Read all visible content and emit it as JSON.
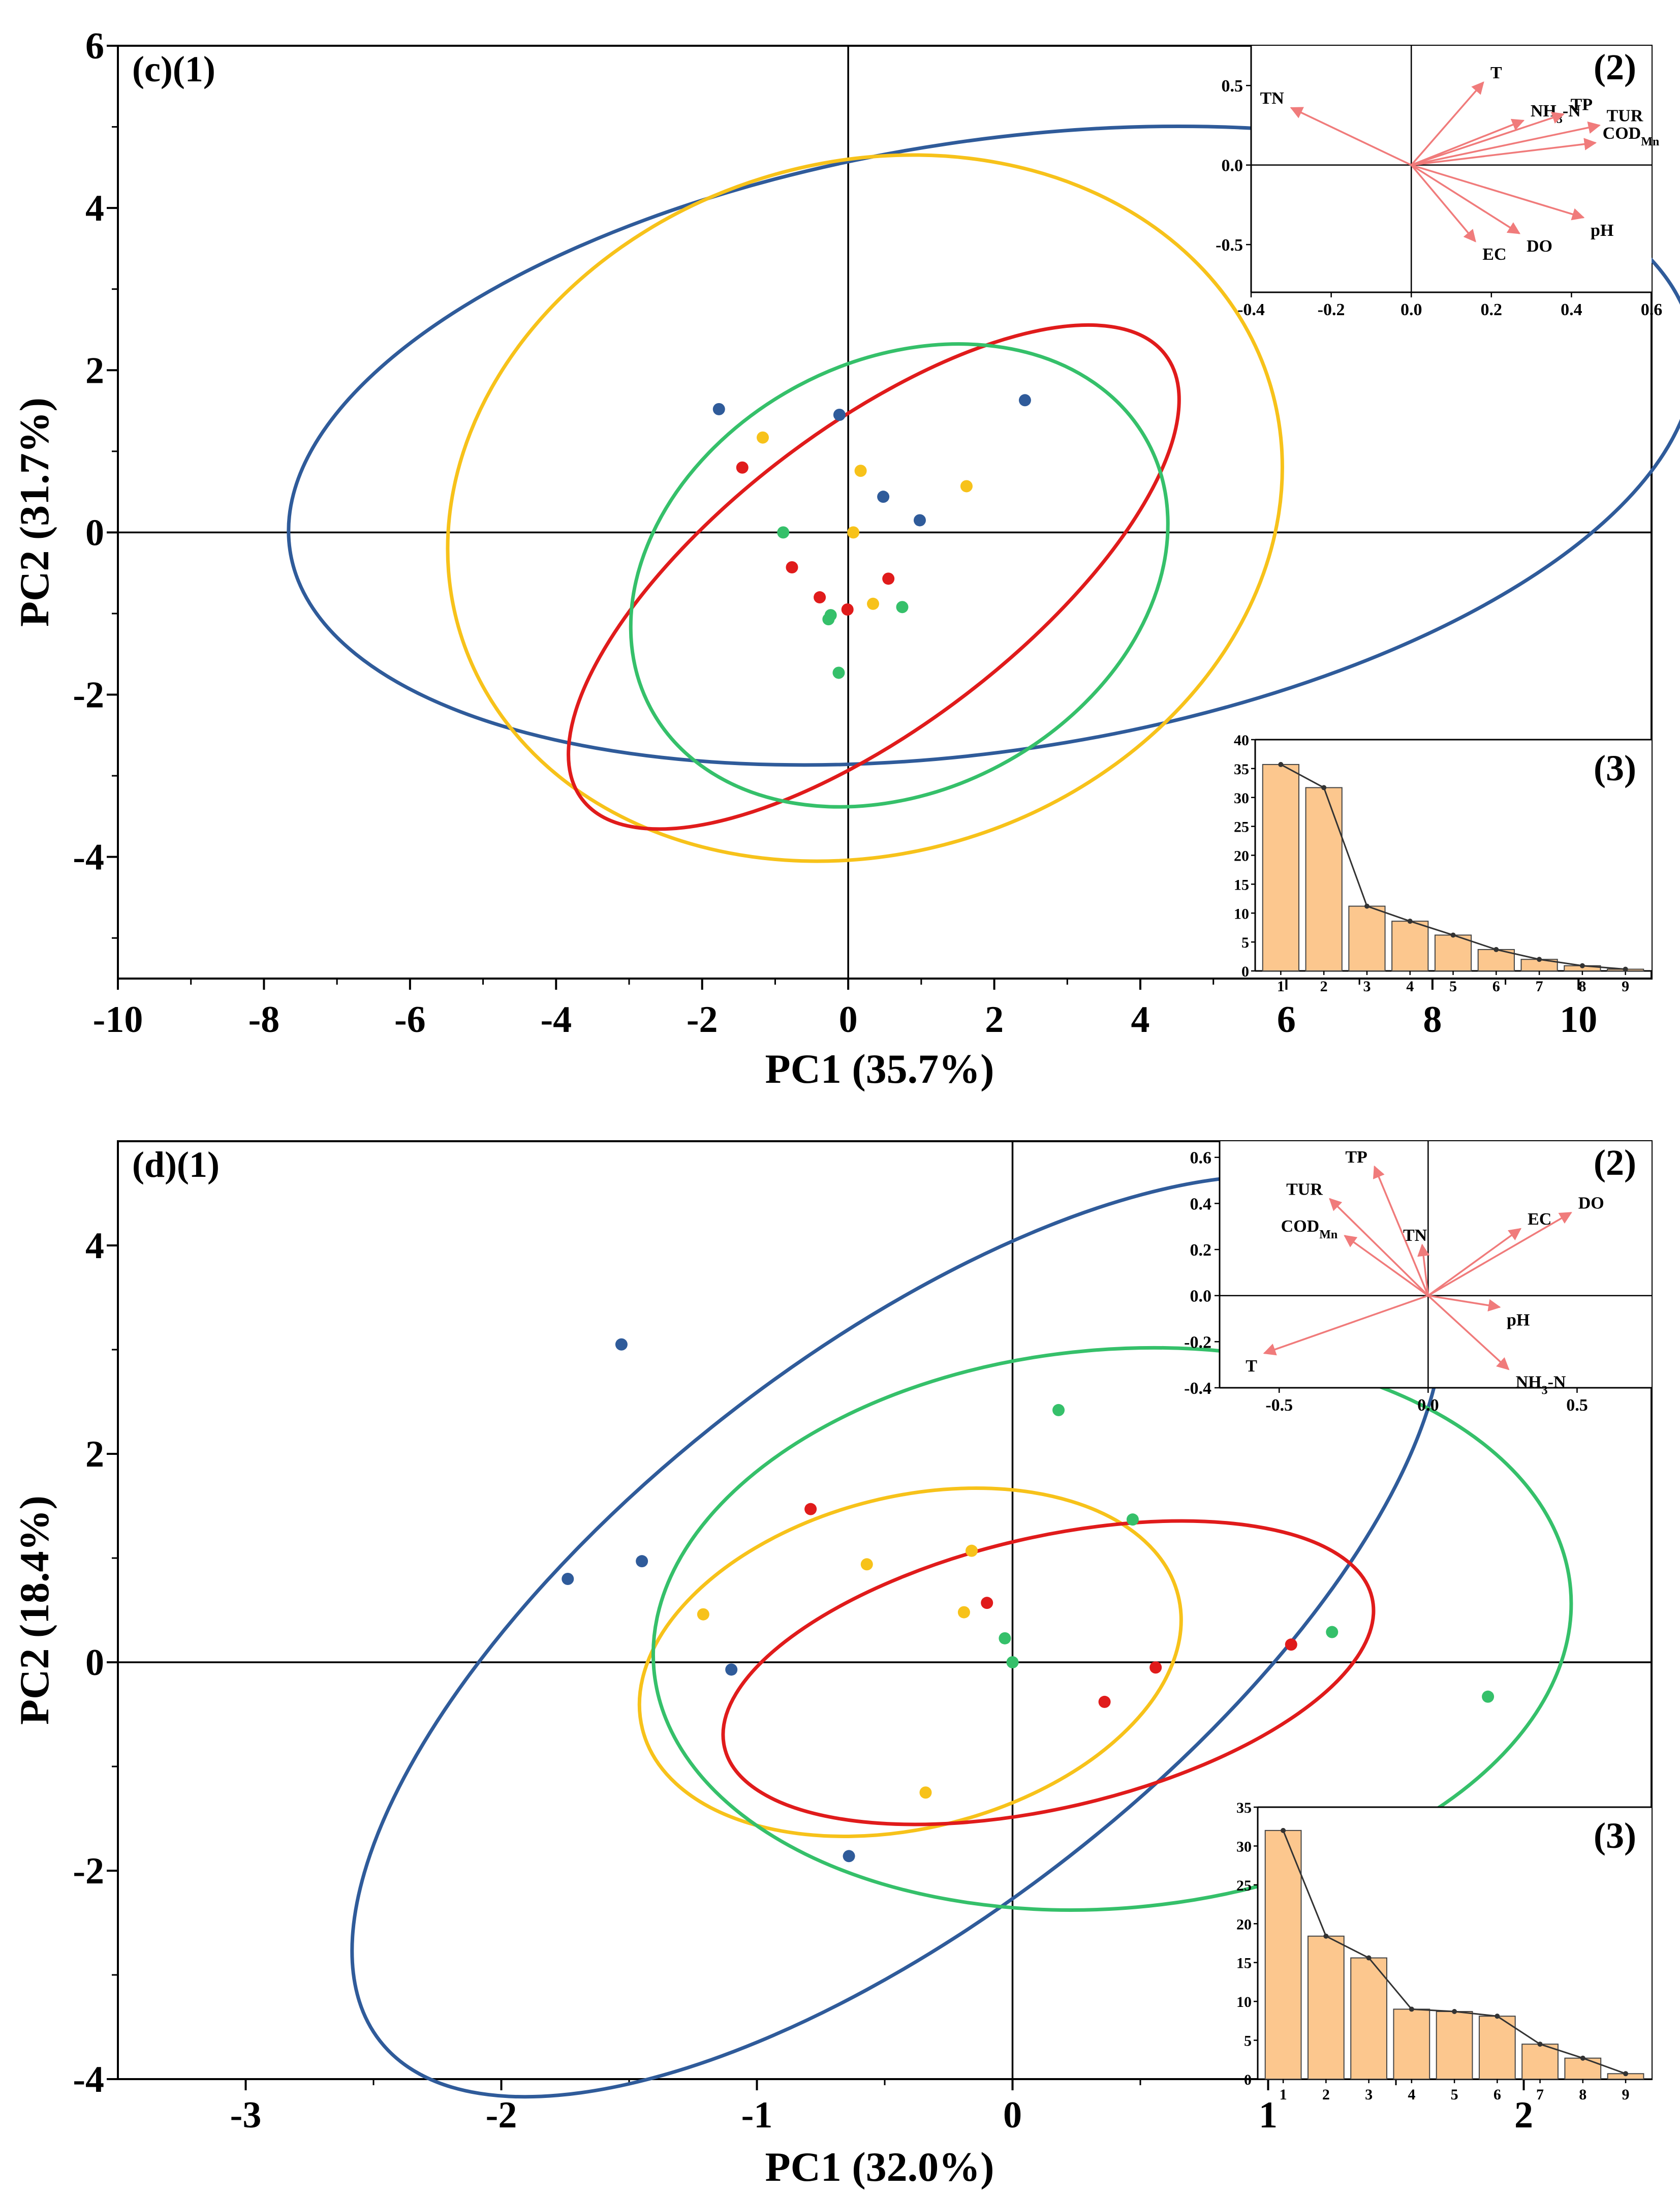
{
  "colors": {
    "blue": "#2f5b9a",
    "yellow": "#f7c21a",
    "red": "#e01b1b",
    "green": "#35c06a",
    "arrow": "#f07b7b",
    "bar": "#fcc78e",
    "bar_edge": "#444444",
    "axis": "#000000"
  },
  "chart_data": [
    {
      "type": "scatter",
      "panel_label": "(c)(1)",
      "xlabel": "PC1 (35.7%)",
      "ylabel": "PC2 (31.7%)",
      "xlim": [
        -10,
        11
      ],
      "ylim": [
        -5.5,
        6
      ],
      "xticks": [
        -10,
        -8,
        -6,
        -4,
        -2,
        0,
        2,
        4,
        6,
        8,
        10
      ],
      "yticks": [
        -4,
        -2,
        0,
        2,
        4,
        6
      ],
      "tick_labels_x": [
        "-10",
        "-8",
        "-6",
        "-4",
        "-2",
        "0",
        "2",
        "4",
        "6",
        "8",
        "10"
      ],
      "tick_labels_y": [
        "-4",
        "-2",
        "0",
        "2",
        "4",
        "6"
      ],
      "series": [
        {
          "name": "blue",
          "color": "blue",
          "points": [
            [
              -1.77,
              1.52
            ],
            [
              -0.12,
              1.45
            ],
            [
              0.48,
              0.44
            ],
            [
              0.98,
              0.15
            ],
            [
              2.42,
              1.63
            ]
          ],
          "ellipse": {
            "cx": 1.96,
            "cy": 1.07,
            "rx": 9.71,
            "ry": 3.76,
            "angle": -8.5
          }
        },
        {
          "name": "yellow",
          "color": "yellow",
          "points": [
            [
              -1.17,
              1.17
            ],
            [
              0.17,
              0.76
            ],
            [
              1.62,
              0.57
            ],
            [
              0.07,
              0.0
            ],
            [
              0.34,
              -0.88
            ]
          ],
          "ellipse": {
            "cx": 0.23,
            "cy": 0.3,
            "rx": 5.8,
            "ry": 4.26,
            "angle": -17.2
          }
        },
        {
          "name": "red",
          "color": "red",
          "points": [
            [
              -1.45,
              0.8
            ],
            [
              -0.77,
              -0.43
            ],
            [
              -0.39,
              -0.8
            ],
            [
              -0.01,
              -0.95
            ],
            [
              0.55,
              -0.57
            ]
          ],
          "ellipse": {
            "cx": 0.35,
            "cy": -0.55,
            "rx": 5.02,
            "ry": 1.84,
            "angle": -37.3
          }
        },
        {
          "name": "green",
          "color": "green",
          "points": [
            [
              -0.89,
              0.0
            ],
            [
              -0.24,
              -1.02
            ],
            [
              -0.27,
              -1.07
            ],
            [
              0.74,
              -0.92
            ],
            [
              -0.13,
              -1.73
            ]
          ],
          "ellipse": {
            "cx": 0.7,
            "cy": -0.53,
            "rx": 3.86,
            "ry": 2.65,
            "angle": -28
          }
        }
      ],
      "loadings": {
        "panel_label": "(2)",
        "xlim": [
          -0.4,
          0.6
        ],
        "ylim": [
          -0.8,
          0.75
        ],
        "xticks": [
          -0.4,
          -0.2,
          0.0,
          0.2,
          0.4,
          0.6
        ],
        "yticks": [
          -0.5,
          0.0,
          0.5
        ],
        "tick_labels_x": [
          "-0.4",
          "-0.2",
          "0.0",
          "0.2",
          "0.4",
          "0.6"
        ],
        "tick_labels_y": [
          "-0.5",
          "0.0",
          "0.5"
        ],
        "vectors": [
          {
            "name": "TN",
            "x": -0.3,
            "y": 0.36
          },
          {
            "name": "T",
            "x": 0.18,
            "y": 0.52
          },
          {
            "name": "NH3-N",
            "x": 0.28,
            "y": 0.28
          },
          {
            "name": "TP",
            "x": 0.38,
            "y": 0.32
          },
          {
            "name": "TUR",
            "x": 0.47,
            "y": 0.25
          },
          {
            "name": "CODMn",
            "x": 0.46,
            "y": 0.14
          },
          {
            "name": "pH",
            "x": 0.43,
            "y": -0.33
          },
          {
            "name": "DO",
            "x": 0.27,
            "y": -0.43
          },
          {
            "name": "EC",
            "x": 0.16,
            "y": -0.48
          }
        ]
      },
      "scree": {
        "panel_label": "(3)",
        "categories": [
          "1",
          "2",
          "3",
          "4",
          "5",
          "6",
          "7",
          "8",
          "9"
        ],
        "values": [
          35.7,
          31.7,
          11.2,
          8.6,
          6.2,
          3.7,
          2.0,
          0.9,
          0.3
        ],
        "ylim": [
          0,
          40
        ],
        "yticks": [
          0,
          5,
          10,
          15,
          20,
          25,
          30,
          35,
          40
        ],
        "tick_labels_y": [
          "0",
          "5",
          "10",
          "15",
          "20",
          "25",
          "30",
          "35",
          "40"
        ]
      }
    },
    {
      "type": "scatter",
      "panel_label": "(d)(1)",
      "xlabel": "PC1 (32.0%)",
      "ylabel": "PC2 (18.4%)",
      "xlim": [
        -3.5,
        2.5
      ],
      "ylim": [
        -4,
        5
      ],
      "xticks": [
        -3,
        -2,
        -1,
        0,
        1,
        2
      ],
      "yticks": [
        -4,
        -2,
        0,
        2,
        4
      ],
      "tick_labels_x": [
        "-3",
        "-2",
        "-1",
        "0",
        "1",
        "2"
      ],
      "tick_labels_y": [
        "-4",
        "-2",
        "0",
        "2",
        "4"
      ],
      "series": [
        {
          "name": "blue",
          "color": "blue",
          "points": [
            [
              -1.53,
              3.05
            ],
            [
              -1.45,
              0.97
            ],
            [
              -1.74,
              0.8
            ],
            [
              -1.1,
              -0.07
            ],
            [
              -0.64,
              -1.86
            ]
          ],
          "ellipse": {
            "cx": -0.45,
            "cy": 0.25,
            "rx": 2.57,
            "ry": 2.68,
            "angle": -38
          }
        },
        {
          "name": "yellow",
          "color": "yellow",
          "points": [
            [
              -1.21,
              0.46
            ],
            [
              -0.57,
              0.94
            ],
            [
              -0.16,
              1.07
            ],
            [
              -0.19,
              0.48
            ],
            [
              -0.34,
              -1.25
            ]
          ],
          "ellipse": {
            "cx": -0.4,
            "cy": 0.0,
            "rx": 1.08,
            "ry": 1.59,
            "angle": -14
          }
        },
        {
          "name": "red",
          "color": "red",
          "points": [
            [
              -0.79,
              1.47
            ],
            [
              -0.1,
              0.57
            ],
            [
              0.36,
              -0.38
            ],
            [
              0.56,
              -0.05
            ],
            [
              1.09,
              0.17
            ]
          ],
          "ellipse": {
            "cx": 0.14,
            "cy": -0.1,
            "rx": 1.3,
            "ry": 1.3,
            "angle": -13
          }
        },
        {
          "name": "green",
          "color": "green",
          "points": [
            [
              0.18,
              2.42
            ],
            [
              0.47,
              1.37
            ],
            [
              -0.03,
              0.23
            ],
            [
              0.0,
              0.0
            ],
            [
              1.25,
              0.29
            ],
            [
              1.86,
              -0.33
            ]
          ],
          "ellipse": {
            "cx": 0.39,
            "cy": 0.32,
            "rx": 1.8,
            "ry": 2.68,
            "angle": -5
          }
        }
      ],
      "loadings": {
        "panel_label": "(2)",
        "xlim": [
          -0.7,
          0.75
        ],
        "ylim": [
          -0.4,
          0.67
        ],
        "xticks": [
          -0.5,
          0.0,
          0.5
        ],
        "yticks": [
          -0.4,
          -0.2,
          0.0,
          0.2,
          0.4,
          0.6
        ],
        "tick_labels_x": [
          "-0.5",
          "0.0",
          "0.5"
        ],
        "tick_labels_y": [
          "-0.4",
          "-0.2",
          "0.0",
          "0.2",
          "0.4",
          "0.6"
        ],
        "vectors": [
          {
            "name": "TP",
            "x": -0.18,
            "y": 0.56
          },
          {
            "name": "TUR",
            "x": -0.33,
            "y": 0.42
          },
          {
            "name": "CODMn",
            "x": -0.28,
            "y": 0.26
          },
          {
            "name": "TN",
            "x": -0.02,
            "y": 0.22
          },
          {
            "name": "EC",
            "x": 0.31,
            "y": 0.29
          },
          {
            "name": "DO",
            "x": 0.48,
            "y": 0.36
          },
          {
            "name": "pH",
            "x": 0.24,
            "y": -0.05
          },
          {
            "name": "NH3-N",
            "x": 0.27,
            "y": -0.32
          },
          {
            "name": "T",
            "x": -0.55,
            "y": -0.25
          }
        ]
      },
      "scree": {
        "panel_label": "(3)",
        "categories": [
          "1",
          "2",
          "3",
          "4",
          "5",
          "6",
          "7",
          "8",
          "9"
        ],
        "values": [
          32.0,
          18.4,
          15.6,
          9.0,
          8.7,
          8.1,
          4.5,
          2.7,
          0.7
        ],
        "ylim": [
          0,
          35
        ],
        "yticks": [
          0,
          5,
          10,
          15,
          20,
          25,
          30,
          35
        ],
        "tick_labels_y": [
          "0",
          "5",
          "10",
          "15",
          "20",
          "25",
          "30",
          "35"
        ]
      }
    }
  ]
}
